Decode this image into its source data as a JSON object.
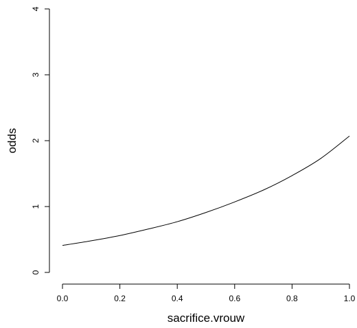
{
  "chart_data": {
    "type": "line",
    "title": "",
    "xlabel": "sacrifice.vrouw",
    "ylabel": "odds",
    "xlim": [
      0,
      1
    ],
    "ylim": [
      0,
      4
    ],
    "x_ticks": [
      "0.0",
      "0.2",
      "0.4",
      "0.6",
      "0.8",
      "1.0"
    ],
    "y_ticks": [
      "0",
      "1",
      "2",
      "3",
      "4"
    ],
    "grid": false,
    "line_color": "#000000",
    "series": [
      {
        "x": [
          0.0,
          0.1,
          0.2,
          0.3,
          0.4,
          0.5,
          0.6,
          0.7,
          0.8,
          0.9,
          1.0
        ],
        "y": [
          0.41,
          0.48,
          0.56,
          0.66,
          0.77,
          0.91,
          1.07,
          1.25,
          1.47,
          1.73,
          2.07
        ]
      }
    ]
  }
}
